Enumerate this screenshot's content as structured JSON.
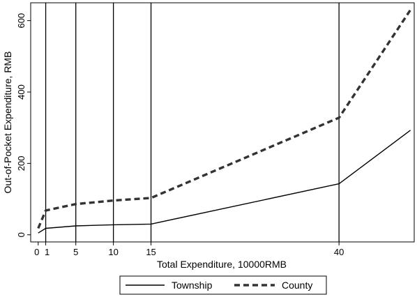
{
  "chart_data": {
    "type": "line",
    "xlabel": "Total Expenditure, 10000RMB",
    "ylabel": "Out-of-Pocket Expenditure, RMB",
    "xlim": [
      -1,
      50
    ],
    "ylim": [
      -20,
      650
    ],
    "x_ticks": [
      {
        "value": 0,
        "label": "0"
      },
      {
        "value": 1,
        "label": "1"
      },
      {
        "value": 5,
        "label": "5"
      },
      {
        "value": 10,
        "label": "10"
      },
      {
        "value": 15,
        "label": "15"
      },
      {
        "value": 40,
        "label": "40"
      }
    ],
    "y_ticks": [
      {
        "value": 0,
        "label": "0"
      },
      {
        "value": 200,
        "label": "200"
      },
      {
        "value": 400,
        "label": "400"
      },
      {
        "value": 600,
        "label": "600"
      }
    ],
    "vertical_lines": [
      1,
      5,
      10,
      15,
      40
    ],
    "legend_position": "bottom",
    "series": [
      {
        "name": "Township",
        "style": "solid",
        "color": "#000000",
        "x": [
          0,
          1,
          5,
          10,
          15,
          40,
          49.5
        ],
        "y": [
          5,
          18,
          25,
          28,
          30,
          143,
          293
        ]
      },
      {
        "name": "County",
        "style": "dashed",
        "color": "#333333",
        "x": [
          0,
          1,
          5,
          10,
          15,
          40,
          49.5
        ],
        "y": [
          18,
          68,
          86,
          96,
          103,
          328,
          630
        ]
      }
    ]
  }
}
